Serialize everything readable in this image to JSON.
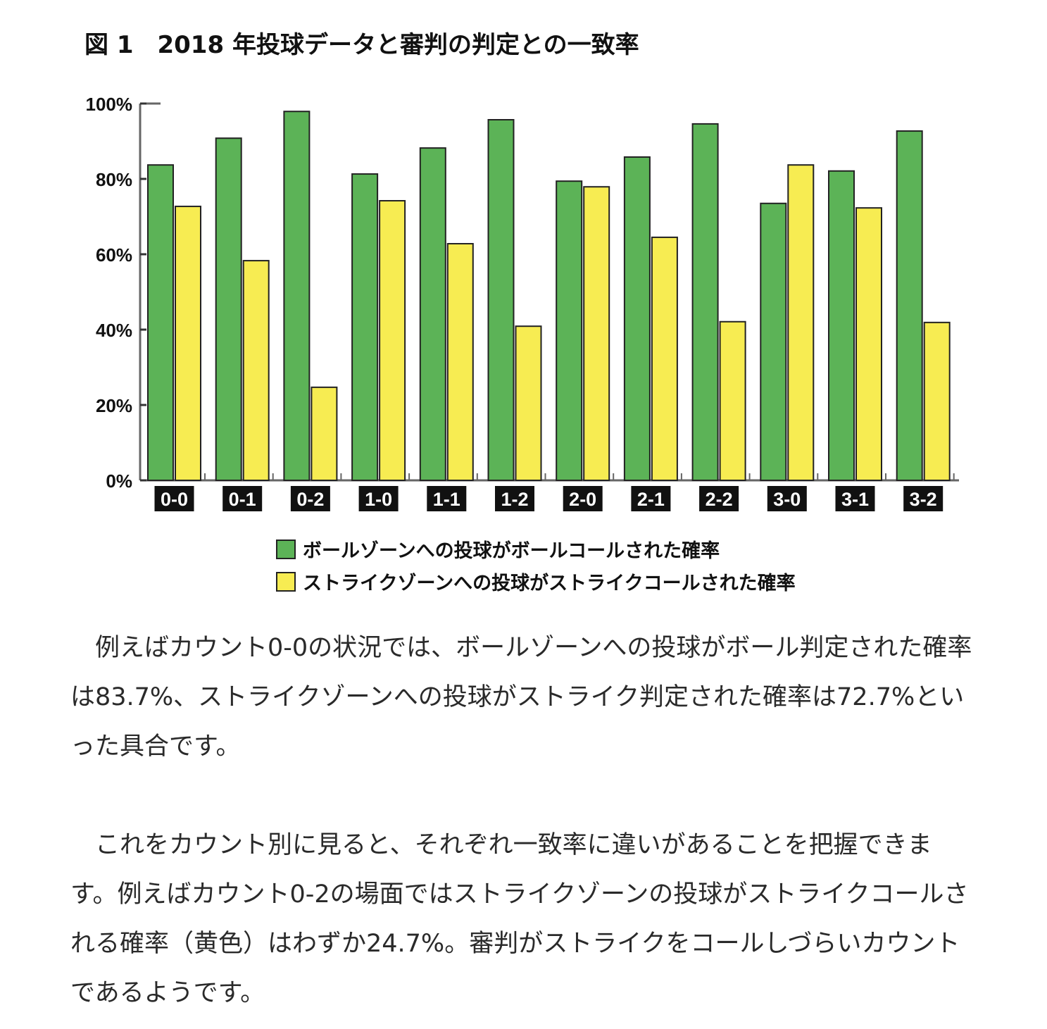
{
  "title": "図 1　2018 年投球データと審判の判定との一致率",
  "chart_data": {
    "type": "bar",
    "title": "図 1　2018 年投球データと審判の判定との一致率",
    "categories": [
      "0-0",
      "0-1",
      "0-2",
      "1-0",
      "1-1",
      "1-2",
      "2-0",
      "2-1",
      "2-2",
      "3-0",
      "3-1",
      "3-2"
    ],
    "series": [
      {
        "name": "ボールゾーンへの投球がボールコールされた確率",
        "color": "#5cb357",
        "values": [
          83.7,
          90.8,
          97.9,
          81.3,
          88.2,
          95.7,
          79.4,
          85.8,
          94.6,
          73.5,
          82.1,
          92.7
        ]
      },
      {
        "name": "ストライクゾーンへの投球がストライクコールされた確率",
        "color": "#f7ec52",
        "values": [
          72.7,
          58.3,
          24.7,
          74.2,
          62.8,
          40.9,
          77.9,
          64.5,
          42.1,
          83.7,
          72.3,
          41.9
        ]
      }
    ],
    "yticks": [
      "0%",
      "20%",
      "40%",
      "60%",
      "80%",
      "100%"
    ],
    "ylim": [
      0,
      100
    ],
    "xlabel": "",
    "ylabel": "",
    "legend": "bottom"
  },
  "paragraphs": [
    "例えばカウント0-0の状況では、ボールゾーンへの投球がボール判定された確率は83.7%、ストライクゾーンへの投球がストライク判定された確率は72.7%といった具合です。",
    "これをカウント別に見ると、それぞれ一致率に違いがあることを把握できます。例えばカウント0-2の場面ではストライクゾーンの投球がストライクコールされる確率（黄色）はわずか24.7%。審判がストライクをコールしづらいカウントであるようです。"
  ]
}
